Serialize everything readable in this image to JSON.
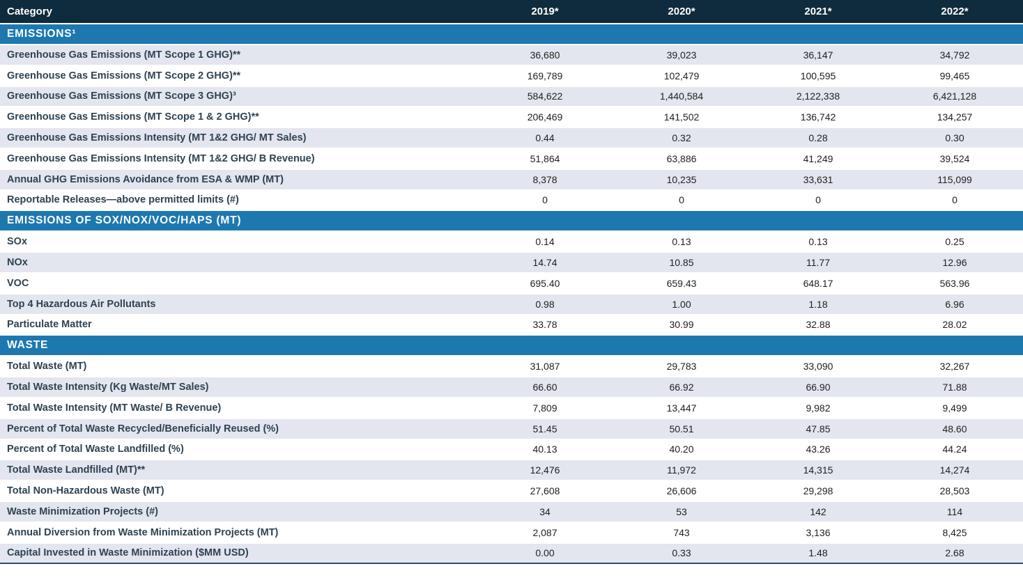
{
  "table": {
    "header": {
      "category_label": "Category",
      "years": [
        "2019*",
        "2020*",
        "2021*",
        "2022*"
      ]
    },
    "sections": [
      {
        "title": "EMISSIONS¹",
        "rows": [
          {
            "label": "Greenhouse Gas Emissions (MT Scope 1 GHG)**",
            "values": [
              "36,680",
              "39,023",
              "36,147",
              "34,792"
            ]
          },
          {
            "label": "Greenhouse Gas Emissions (MT Scope 2 GHG)**",
            "values": [
              "169,789",
              "102,479",
              "100,595",
              "99,465"
            ]
          },
          {
            "label": "Greenhouse Gas Emissions (MT Scope 3 GHG)³",
            "values": [
              "584,622",
              "1,440,584",
              "2,122,338",
              "6,421,128"
            ]
          },
          {
            "label": "Greenhouse Gas Emissions (MT Scope 1 & 2 GHG)**",
            "values": [
              "206,469",
              "141,502",
              "136,742",
              "134,257"
            ]
          },
          {
            "label": "Greenhouse Gas Emissions Intensity (MT 1&2 GHG/ MT Sales)",
            "values": [
              "0.44",
              "0.32",
              "0.28",
              "0.30"
            ]
          },
          {
            "label": "Greenhouse Gas Emissions Intensity (MT 1&2 GHG/ B Revenue)",
            "values": [
              "51,864",
              "63,886",
              "41,249",
              "39,524"
            ]
          },
          {
            "label": "Annual GHG Emissions Avoidance from ESA & WMP (MT)",
            "values": [
              "8,378",
              "10,235",
              "33,631",
              "115,099"
            ]
          },
          {
            "label": "Reportable Releases—above permitted limits (#)",
            "values": [
              "0",
              "0",
              "0",
              "0"
            ]
          }
        ]
      },
      {
        "title": "EMISSIONS OF SOX/NOX/VOC/HAPS (MT)",
        "rows": [
          {
            "label": "SOx",
            "values": [
              "0.14",
              "0.13",
              "0.13",
              "0.25"
            ]
          },
          {
            "label": "NOx",
            "values": [
              "14.74",
              "10.85",
              "11.77",
              "12.96"
            ]
          },
          {
            "label": "VOC",
            "values": [
              "695.40",
              "659.43",
              "648.17",
              "563.96"
            ]
          },
          {
            "label": "Top 4 Hazardous Air Pollutants",
            "values": [
              "0.98",
              "1.00",
              "1.18",
              "6.96"
            ]
          },
          {
            "label": "Particulate Matter",
            "values": [
              "33.78",
              "30.99",
              "32.88",
              "28.02"
            ]
          }
        ]
      },
      {
        "title": "WASTE",
        "rows": [
          {
            "label": "Total Waste (MT)",
            "values": [
              "31,087",
              "29,783",
              "33,090",
              "32,267"
            ]
          },
          {
            "label": "Total Waste Intensity (Kg Waste/MT Sales)",
            "values": [
              "66.60",
              "66.92",
              "66.90",
              "71.88"
            ]
          },
          {
            "label": "Total Waste Intensity (MT Waste/ B Revenue)",
            "values": [
              "7,809",
              "13,447",
              "9,982",
              "9,499"
            ]
          },
          {
            "label": "Percent of Total Waste Recycled/Beneficially Reused (%)",
            "values": [
              "51.45",
              "50.51",
              "47.85",
              "48.60"
            ]
          },
          {
            "label": "Percent of Total Waste Landfilled (%)",
            "values": [
              "40.13",
              "40.20",
              "43.26",
              "44.24"
            ]
          },
          {
            "label": "Total Waste Landfilled (MT)**",
            "values": [
              "12,476",
              "11,972",
              "14,315",
              "14,274"
            ]
          },
          {
            "label": "Total Non-Hazardous Waste (MT)",
            "values": [
              "27,608",
              "26,606",
              "29,298",
              "28,503"
            ]
          },
          {
            "label": "Waste Minimization Projects (#)",
            "values": [
              "34",
              "53",
              "142",
              "114"
            ]
          },
          {
            "label": "Annual Diversion from Waste Minimization Projects (MT)",
            "values": [
              "2,087",
              "743",
              "3,136",
              "8,425"
            ]
          },
          {
            "label": "Capital Invested in Waste Minimization ($MM USD)",
            "values": [
              "0.00",
              "0.33",
              "1.48",
              "2.68"
            ]
          }
        ]
      }
    ]
  },
  "colors": {
    "header_background": "#0e2c3d",
    "section_background": "#1e78b0",
    "alt_row_background": "#e3e6ef",
    "label_text": "#2e4251",
    "value_text": "#1e1e1e",
    "bottom_rule": "#2b4d63"
  }
}
